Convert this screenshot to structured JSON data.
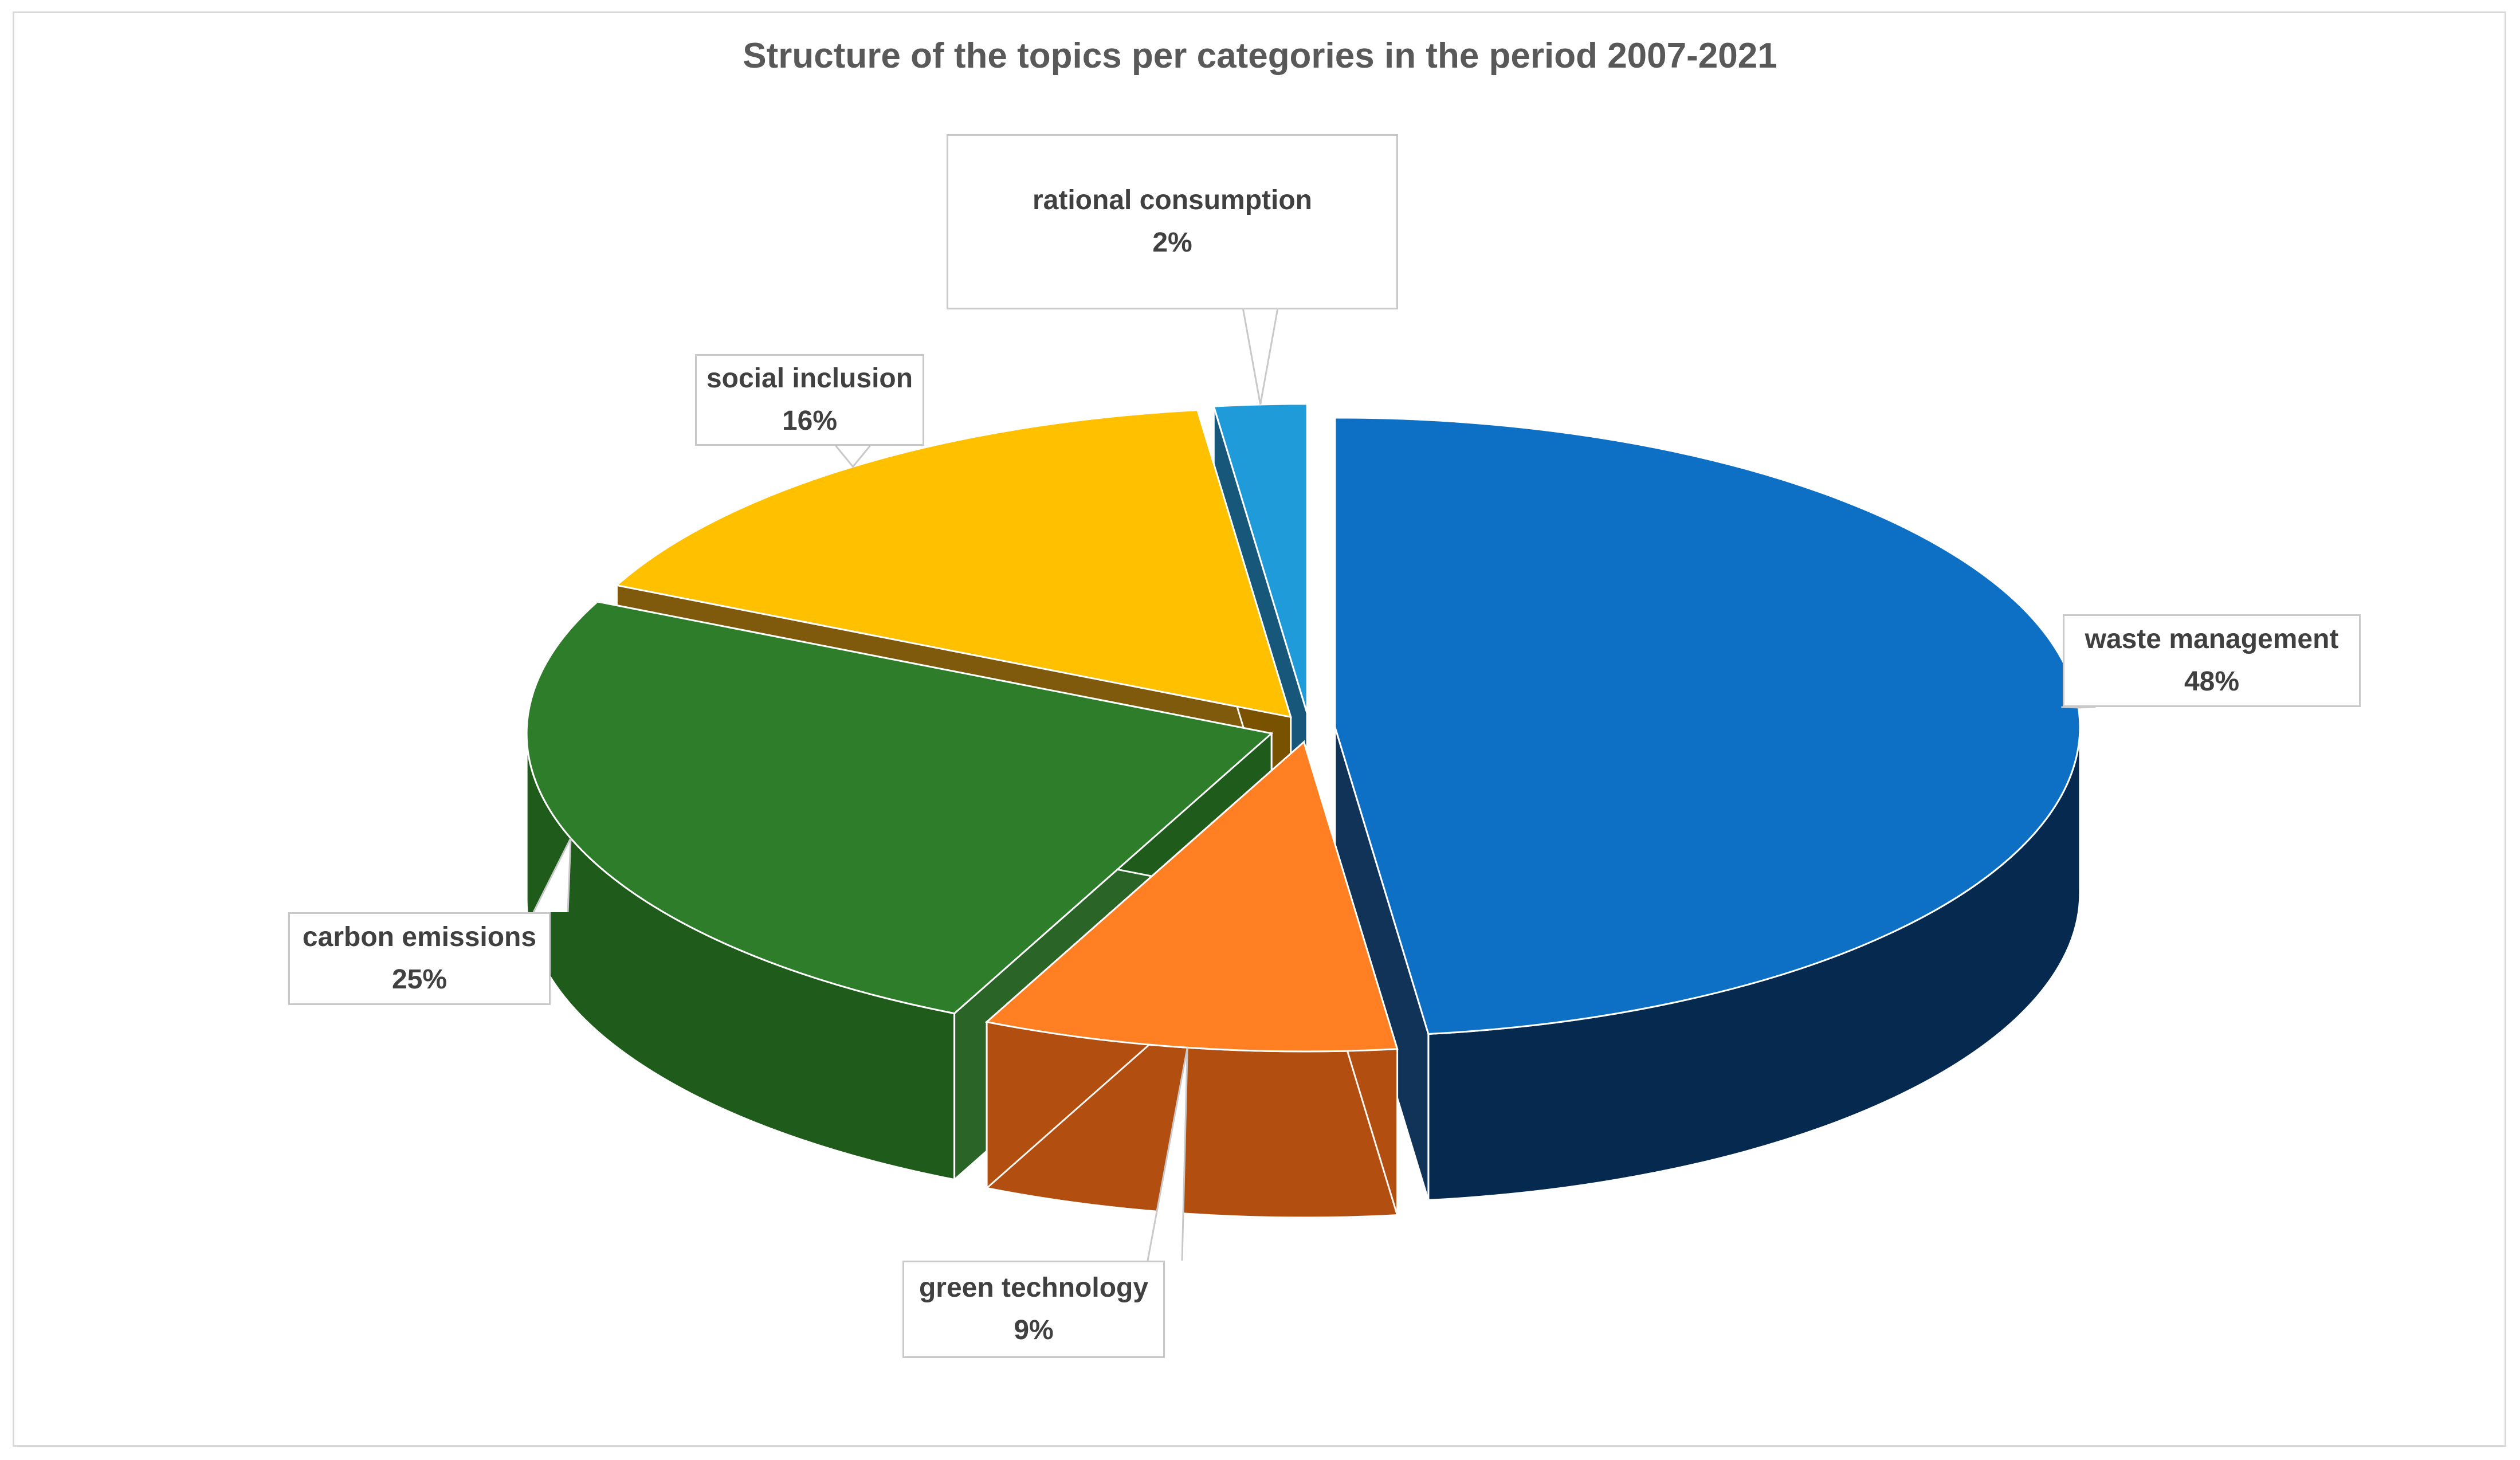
{
  "chart_data": {
    "type": "pie",
    "style": "3d-exploded",
    "title": "Structure of the topics per categories in the period 2007-2021",
    "slices": [
      {
        "label": "waste management",
        "value": 48,
        "value_label": "48%",
        "color": "#0E70C5",
        "side_color": "#05294F"
      },
      {
        "label": "green technology",
        "value": 9,
        "value_label": "9%",
        "color": "#FF7F22",
        "side_color": "#B24F10"
      },
      {
        "label": "carbon emissions",
        "value": 25,
        "value_label": "25%",
        "color": "#2E7D2A",
        "side_color": "#1F5C1C"
      },
      {
        "label": "social inclusion",
        "value": 16,
        "value_label": "16%",
        "color": "#FFC000",
        "side_color": "#7A5200"
      },
      {
        "label": "rational consumption",
        "value": 2,
        "value_label": "2%",
        "color": "#1F9BD9",
        "side_color": "#0B4F73"
      }
    ],
    "legend": "none"
  }
}
